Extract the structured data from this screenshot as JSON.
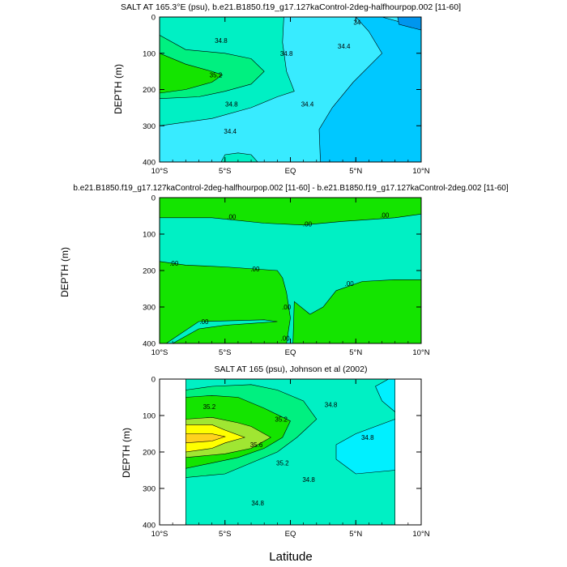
{
  "figure": {
    "xlabel": "Latitude"
  },
  "chart_data": [
    {
      "type": "heatmap",
      "title": "SALT AT 165.3°E (psu), b.e21.B1850.f19_g17.127kaControl-2deg-halfhourpop.002 [11-60]",
      "xlabel": "",
      "ylabel": "DEPTH (m)",
      "x_ticks": [
        "10°S",
        "5°S",
        "EQ",
        "5°N",
        "10°N"
      ],
      "y_ticks": [
        "0",
        "100",
        "200",
        "300",
        "400"
      ],
      "xlim": [
        -10,
        10
      ],
      "ylim": [
        0,
        400
      ],
      "y_reversed": true,
      "regions": [
        {
          "level": 34.2,
          "color": "#00c8ff",
          "points": [
            [
              5,
              0
            ],
            [
              7,
              0
            ],
            [
              10,
              30
            ],
            [
              10,
              400
            ],
            [
              2.3,
              400
            ],
            [
              2.2,
              310
            ],
            [
              3.2,
              250
            ],
            [
              4.8,
              180
            ],
            [
              7,
              100
            ],
            [
              6,
              40
            ]
          ]
        },
        {
          "level": 34.0,
          "color": "#0096ee",
          "points": [
            [
              8.2,
              0
            ],
            [
              10,
              0
            ],
            [
              10,
              36
            ],
            [
              8.3,
              20
            ]
          ]
        },
        {
          "level": 34.8,
          "color": "#00f0c4",
          "points": [
            [
              -10,
              0
            ],
            [
              -0.5,
              0
            ],
            [
              -0.6,
              70
            ],
            [
              -0.3,
              150
            ],
            [
              0.3,
              205
            ],
            [
              -1,
              220
            ],
            [
              -3,
              250
            ],
            [
              -6,
              280
            ],
            [
              -10,
              300
            ]
          ]
        },
        {
          "level": 34.8,
          "color": "#00f0c4",
          "points": [
            [
              -5.3,
              400
            ],
            [
              -5,
              380
            ],
            [
              -4,
              375
            ],
            [
              -3,
              380
            ],
            [
              -2.5,
              400
            ]
          ]
        },
        {
          "level": 35.0,
          "color": "#00f080",
          "points": [
            [
              -10,
              50
            ],
            [
              -8,
              90
            ],
            [
              -5,
              100
            ],
            [
              -3,
              115
            ],
            [
              -2,
              150
            ],
            [
              -3,
              185
            ],
            [
              -5,
              205
            ],
            [
              -7,
              220
            ],
            [
              -10,
              225
            ]
          ]
        },
        {
          "level": 35.2,
          "color": "#14e400",
          "points": [
            [
              -10,
              100
            ],
            [
              -8,
              130
            ],
            [
              -6,
              150
            ],
            [
              -5.2,
              160
            ],
            [
              -6,
              180
            ],
            [
              -8,
              200
            ],
            [
              -10,
              210
            ]
          ]
        }
      ],
      "contour_labels": [
        {
          "text": "34.8",
          "x": -5.3,
          "y": 65
        },
        {
          "text": "35.2",
          "x": -5.7,
          "y": 160
        },
        {
          "text": "34.8",
          "x": -0.3,
          "y": 100
        },
        {
          "text": "34.8",
          "x": -4.5,
          "y": 240
        },
        {
          "text": "34.4",
          "x": -4.6,
          "y": 315
        },
        {
          "text": "34.4",
          "x": 1.3,
          "y": 240
        },
        {
          "text": "34.4",
          "x": 4.1,
          "y": 80
        },
        {
          "text": "34",
          "x": 5.1,
          "y": 15
        }
      ]
    },
    {
      "type": "heatmap",
      "title": "b.e21.B1850.f19_g17.127kaControl-2deg-halfhourpop.002 [11-60] - b.e21.B1850.f19_g17.127kaControl-2deg.002 [11-60]",
      "xlabel": "",
      "ylabel": "DEPTH (m)",
      "x_ticks": [
        "10°S",
        "5°S",
        "EQ",
        "5°N",
        "10°N"
      ],
      "y_ticks": [
        "0",
        "100",
        "200",
        "300",
        "400"
      ],
      "xlim": [
        -10,
        10
      ],
      "ylim": [
        0,
        400
      ],
      "y_reversed": true,
      "regions": [
        {
          "level": 0.02,
          "color": "#14e400",
          "points": [
            [
              -10,
              0
            ],
            [
              10,
              0
            ],
            [
              10,
              45
            ],
            [
              8,
              55
            ],
            [
              4,
              65
            ],
            [
              1,
              75
            ],
            [
              -2,
              70
            ],
            [
              -6,
              55
            ],
            [
              -10,
              55
            ]
          ]
        },
        {
          "level": 0.02,
          "color": "#14e400",
          "points": [
            [
              -10,
              175
            ],
            [
              -8,
              185
            ],
            [
              -5,
              190
            ],
            [
              -1,
              200
            ],
            [
              -0.6,
              220
            ],
            [
              -0.3,
              260
            ],
            [
              0,
              330
            ],
            [
              -0.3,
              400
            ],
            [
              -9,
              400
            ],
            [
              -7,
              360
            ],
            [
              -5,
              350
            ],
            [
              -3,
              345
            ],
            [
              -1,
              340
            ],
            [
              -2,
              335
            ],
            [
              -7,
              340
            ],
            [
              -9.5,
              400
            ],
            [
              -10,
              400
            ]
          ]
        },
        {
          "level": 0.02,
          "color": "#14e400",
          "points": [
            [
              0.3,
              285
            ],
            [
              1.5,
              320
            ],
            [
              2.5,
              300
            ],
            [
              3.5,
              255
            ],
            [
              5.5,
              230
            ],
            [
              8,
              225
            ],
            [
              10,
              225
            ],
            [
              10,
              400
            ],
            [
              0.2,
              400
            ]
          ]
        }
      ],
      "contour_labels": [
        {
          "text": ".00",
          "x": -4.5,
          "y": 52
        },
        {
          "text": ".00",
          "x": 1.3,
          "y": 72
        },
        {
          "text": ".00",
          "x": 7.2,
          "y": 48
        },
        {
          "text": ".00",
          "x": -8.9,
          "y": 180
        },
        {
          "text": ".00",
          "x": -2.7,
          "y": 195
        },
        {
          "text": ".00",
          "x": 4.5,
          "y": 235
        },
        {
          "text": ".00",
          "x": -6.6,
          "y": 340
        },
        {
          "text": ".00",
          "x": -0.3,
          "y": 300
        },
        {
          "text": ".00",
          "x": -0.4,
          "y": 385
        }
      ]
    },
    {
      "type": "heatmap",
      "title": "SALT AT 165 (psu), Johnson et al (2002)",
      "xlabel": "",
      "ylabel": "DEPTH (m)",
      "x_ticks": [
        "10°S",
        "5°S",
        "EQ",
        "5°N",
        "10°N"
      ],
      "y_ticks": [
        "0",
        "100",
        "200",
        "300",
        "400"
      ],
      "xlim": [
        -10,
        10
      ],
      "ylim": [
        0,
        400
      ],
      "y_reversed": true,
      "data_xlim": [
        -8,
        8
      ],
      "regions": [
        {
          "level": 34.8,
          "color": "#00f0c4",
          "points": [
            [
              -8,
              0
            ],
            [
              8,
              0
            ],
            [
              8,
              400
            ],
            [
              -8,
              400
            ]
          ]
        },
        {
          "level": 34.6,
          "color": "#00f0ff",
          "points": [
            [
              7.5,
              0
            ],
            [
              8,
              0
            ],
            [
              8,
              90
            ],
            [
              7,
              60
            ],
            [
              6.5,
              20
            ]
          ]
        },
        {
          "level": 34.6,
          "color": "#00f0ff",
          "points": [
            [
              8,
              110
            ],
            [
              5,
              150
            ],
            [
              3.5,
              180
            ],
            [
              3.5,
              220
            ],
            [
              5,
              260
            ],
            [
              8,
              250
            ]
          ]
        },
        {
          "level": 35.0,
          "color": "#00f080",
          "points": [
            [
              -8,
              30
            ],
            [
              -6,
              20
            ],
            [
              -3,
              15
            ],
            [
              -1,
              30
            ],
            [
              1,
              60
            ],
            [
              2,
              110
            ],
            [
              0.5,
              160
            ],
            [
              -1,
              200
            ],
            [
              -3,
              230
            ],
            [
              -5,
              260
            ],
            [
              -8,
              270
            ]
          ]
        },
        {
          "level": 35.2,
          "color": "#14e400",
          "points": [
            [
              -8,
              50
            ],
            [
              -6,
              45
            ],
            [
              -4,
              50
            ],
            [
              -2,
              80
            ],
            [
              0,
              115
            ],
            [
              -0.6,
              160
            ],
            [
              -2,
              190
            ],
            [
              -4,
              215
            ],
            [
              -8,
              245
            ]
          ]
        },
        {
          "level": 35.4,
          "color": "#a0e632",
          "points": [
            [
              -8,
              110
            ],
            [
              -6,
              105
            ],
            [
              -4,
              120
            ],
            [
              -3,
              130
            ],
            [
              -1.5,
              160
            ],
            [
              -3,
              190
            ],
            [
              -5,
              205
            ],
            [
              -8,
              215
            ]
          ]
        },
        {
          "level": 35.6,
          "color": "#ffff00",
          "points": [
            [
              -8,
              125
            ],
            [
              -6,
              125
            ],
            [
              -5,
              140
            ],
            [
              -3.5,
              160
            ],
            [
              -5,
              175
            ],
            [
              -6,
              190
            ],
            [
              -8,
              200
            ]
          ]
        },
        {
          "level": 35.8,
          "color": "#ffd21e",
          "points": [
            [
              -8,
              150
            ],
            [
              -6,
              150
            ],
            [
              -5,
              158
            ],
            [
              -6,
              170
            ],
            [
              -8,
              175
            ]
          ]
        }
      ],
      "contour_labels": [
        {
          "text": "35.2",
          "x": -6.2,
          "y": 75
        },
        {
          "text": "35.2",
          "x": -0.7,
          "y": 110
        },
        {
          "text": "35.6",
          "x": -2.6,
          "y": 180
        },
        {
          "text": "35.2",
          "x": -0.6,
          "y": 230
        },
        {
          "text": "34.8",
          "x": 3.1,
          "y": 70
        },
        {
          "text": "34.8",
          "x": 5.9,
          "y": 160
        },
        {
          "text": "34.8",
          "x": 1.4,
          "y": 275
        },
        {
          "text": "34.8",
          "x": -2.5,
          "y": 340
        }
      ]
    }
  ]
}
